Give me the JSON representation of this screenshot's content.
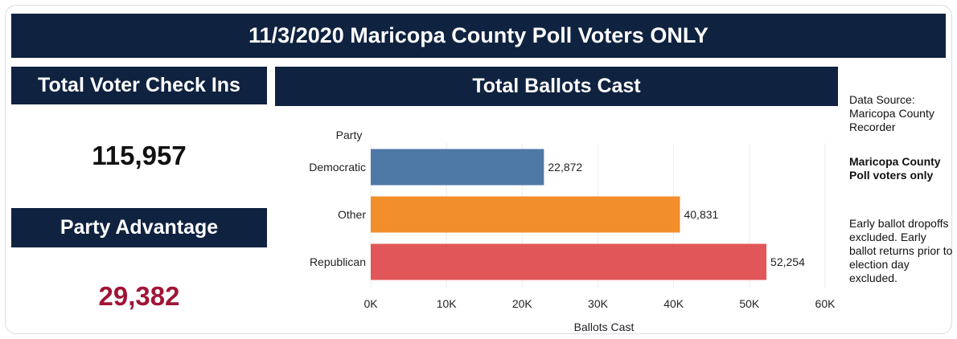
{
  "title": "11/3/2020 Maricopa County Poll Voters ONLY",
  "checkins": {
    "header": "Total Voter Check Ins",
    "value": "115,957"
  },
  "advantage": {
    "header": "Party Advantage",
    "value": "29,382",
    "color": "#a01536"
  },
  "ballots": {
    "header": "Total Ballots Cast"
  },
  "side_notes": {
    "source": "Data Source: Maricopa County Recorder",
    "bold_note": "Maricopa County Poll voters only",
    "note": "Early ballot dropoffs excluded. Early ballot returns prior to election day excluded."
  },
  "chart_data": {
    "type": "bar",
    "orientation": "horizontal",
    "category_axis_title": "Party",
    "categories": [
      "Democratic",
      "Other",
      "Republican"
    ],
    "values": [
      22872,
      40831,
      52254
    ],
    "value_labels": [
      "22,872",
      "40,831",
      "52,254"
    ],
    "colors": [
      "#4e79a7",
      "#f28e2b",
      "#e15759"
    ],
    "xlabel": "Ballots Cast",
    "xlim": [
      0,
      60000
    ],
    "xticks": [
      0,
      10000,
      20000,
      30000,
      40000,
      50000,
      60000
    ],
    "xtick_labels": [
      "0K",
      "10K",
      "20K",
      "30K",
      "40K",
      "50K",
      "60K"
    ],
    "grid": true
  }
}
